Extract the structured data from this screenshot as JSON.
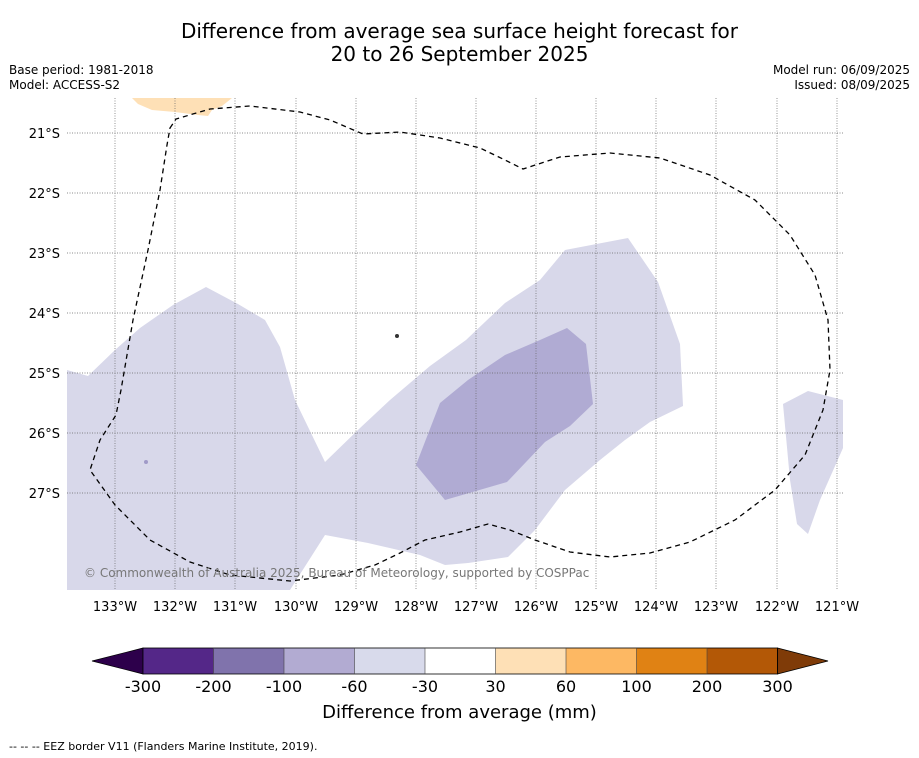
{
  "header": {
    "title_line1": "Difference from average sea surface height forecast for",
    "title_line2": "20 to 26 September 2025",
    "base_period": "Base period: 1981-2018",
    "model": "Model: ACCESS-S2",
    "model_run": "Model run: 06/09/2025",
    "issued": "Issued: 08/09/2025"
  },
  "map": {
    "lat_labels": [
      "21°S",
      "22°S",
      "23°S",
      "24°S",
      "25°S",
      "26°S",
      "27°S"
    ],
    "lon_labels": [
      "133°W",
      "132°W",
      "131°W",
      "130°W",
      "129°W",
      "128°W",
      "127°W",
      "126°W",
      "125°W",
      "124°W",
      "123°W",
      "122°W",
      "121°W"
    ],
    "copyright": "© Commonwealth of Australia 2025, Bureau of Meteorology, supported by COSPPac",
    "colors": {
      "light_purple": "#d8d8ea",
      "mid_purple": "#b0abd3",
      "light_orange": "#fee0b6"
    }
  },
  "colorbar": {
    "title": "Difference from average (mm)",
    "tick_labels": [
      "-300",
      "-200",
      "-100",
      "-60",
      "-30",
      "30",
      "60",
      "100",
      "200",
      "300"
    ],
    "colors": [
      "#2d004b",
      "#542788",
      "#8073ac",
      "#b2abd2",
      "#d8daeb",
      "#ffffff",
      "#fee0b6",
      "#fdb863",
      "#e08214",
      "#b35806",
      "#7f3b08"
    ]
  },
  "footer": {
    "eez_note": "--  --  -- EEZ border V11 (Flanders Marine Institute, 2019)."
  }
}
